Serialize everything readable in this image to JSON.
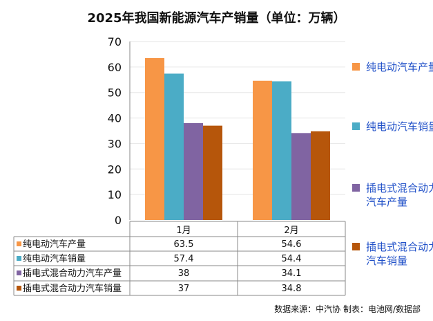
{
  "chart_data": {
    "type": "bar",
    "title": "2025年我国新能源汽车产销量（单位：万辆）",
    "categories": [
      "1月",
      "2月"
    ],
    "series": [
      {
        "name": "纯电动汽车产量",
        "values": [
          63.5,
          54.6
        ],
        "color": "#F79646"
      },
      {
        "name": "纯电动汽车销量",
        "values": [
          57.4,
          54.4
        ],
        "color": "#4BACC6"
      },
      {
        "name": "插电式混合动力汽车产量",
        "values": [
          38,
          34.1
        ],
        "color": "#8064A2"
      },
      {
        "name": "插电式混合动力汽车销量",
        "values": [
          37,
          34.8
        ],
        "color": "#B6560B"
      }
    ],
    "ylim": [
      0,
      70
    ],
    "yticks": [
      0,
      10,
      20,
      30,
      40,
      50,
      60,
      70
    ],
    "grid": true,
    "legend": "right",
    "data_table": true
  },
  "source": "数据来源：中汽协  制表：电池网/数据部"
}
